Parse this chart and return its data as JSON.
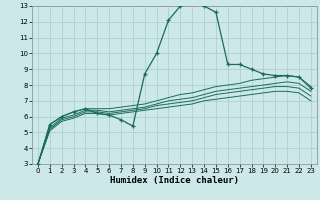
{
  "xlabel": "Humidex (Indice chaleur)",
  "bg_color": "#cce8e8",
  "grid_color": "#aacccc",
  "line_color": "#1a6b5a",
  "xlim": [
    -0.5,
    23.5
  ],
  "ylim": [
    3,
    13
  ],
  "xticks": [
    0,
    1,
    2,
    3,
    4,
    5,
    6,
    7,
    8,
    9,
    10,
    11,
    12,
    13,
    14,
    15,
    16,
    17,
    18,
    19,
    20,
    21,
    22,
    23
  ],
  "yticks": [
    3,
    4,
    5,
    6,
    7,
    8,
    9,
    10,
    11,
    12,
    13
  ],
  "lines": [
    {
      "x": [
        0,
        1,
        2,
        3,
        4,
        5,
        6,
        7,
        8,
        9,
        10,
        11,
        12,
        13,
        14,
        15,
        16,
        17,
        18,
        19,
        20,
        21,
        22,
        23
      ],
      "y": [
        3.0,
        5.5,
        6.0,
        6.3,
        6.5,
        6.2,
        6.1,
        5.8,
        5.4,
        8.7,
        10.0,
        12.1,
        13.0,
        13.3,
        13.0,
        12.6,
        9.3,
        9.3,
        9.0,
        8.7,
        8.6,
        8.6,
        8.5,
        7.8
      ],
      "marker": true
    },
    {
      "x": [
        0,
        1,
        2,
        3,
        4,
        5,
        6,
        7,
        8,
        9,
        10,
        11,
        12,
        13,
        14,
        15,
        16,
        17,
        18,
        19,
        20,
        21,
        22,
        23
      ],
      "y": [
        3.0,
        5.5,
        6.0,
        6.3,
        6.5,
        6.5,
        6.5,
        6.6,
        6.7,
        6.8,
        7.0,
        7.2,
        7.4,
        7.5,
        7.7,
        7.9,
        8.0,
        8.1,
        8.3,
        8.4,
        8.5,
        8.6,
        8.5,
        7.9
      ],
      "marker": false
    },
    {
      "x": [
        0,
        1,
        2,
        3,
        4,
        5,
        6,
        7,
        8,
        9,
        10,
        11,
        12,
        13,
        14,
        15,
        16,
        17,
        18,
        19,
        20,
        21,
        22,
        23
      ],
      "y": [
        3.0,
        5.3,
        5.9,
        6.1,
        6.4,
        6.4,
        6.3,
        6.4,
        6.5,
        6.6,
        6.8,
        7.0,
        7.1,
        7.2,
        7.4,
        7.6,
        7.7,
        7.8,
        7.9,
        8.0,
        8.1,
        8.2,
        8.1,
        7.6
      ],
      "marker": false
    },
    {
      "x": [
        0,
        1,
        2,
        3,
        4,
        5,
        6,
        7,
        8,
        9,
        10,
        11,
        12,
        13,
        14,
        15,
        16,
        17,
        18,
        19,
        20,
        21,
        22,
        23
      ],
      "y": [
        3.0,
        5.2,
        5.8,
        6.0,
        6.3,
        6.3,
        6.2,
        6.3,
        6.4,
        6.5,
        6.7,
        6.8,
        6.9,
        7.0,
        7.2,
        7.4,
        7.5,
        7.6,
        7.7,
        7.8,
        7.9,
        7.9,
        7.8,
        7.3
      ],
      "marker": false
    },
    {
      "x": [
        0,
        1,
        2,
        3,
        4,
        5,
        6,
        7,
        8,
        9,
        10,
        11,
        12,
        13,
        14,
        15,
        16,
        17,
        18,
        19,
        20,
        21,
        22,
        23
      ],
      "y": [
        3.0,
        5.1,
        5.7,
        5.9,
        6.2,
        6.2,
        6.1,
        6.2,
        6.3,
        6.4,
        6.5,
        6.6,
        6.7,
        6.8,
        7.0,
        7.1,
        7.2,
        7.3,
        7.4,
        7.5,
        7.6,
        7.6,
        7.5,
        7.0
      ],
      "marker": false
    }
  ]
}
